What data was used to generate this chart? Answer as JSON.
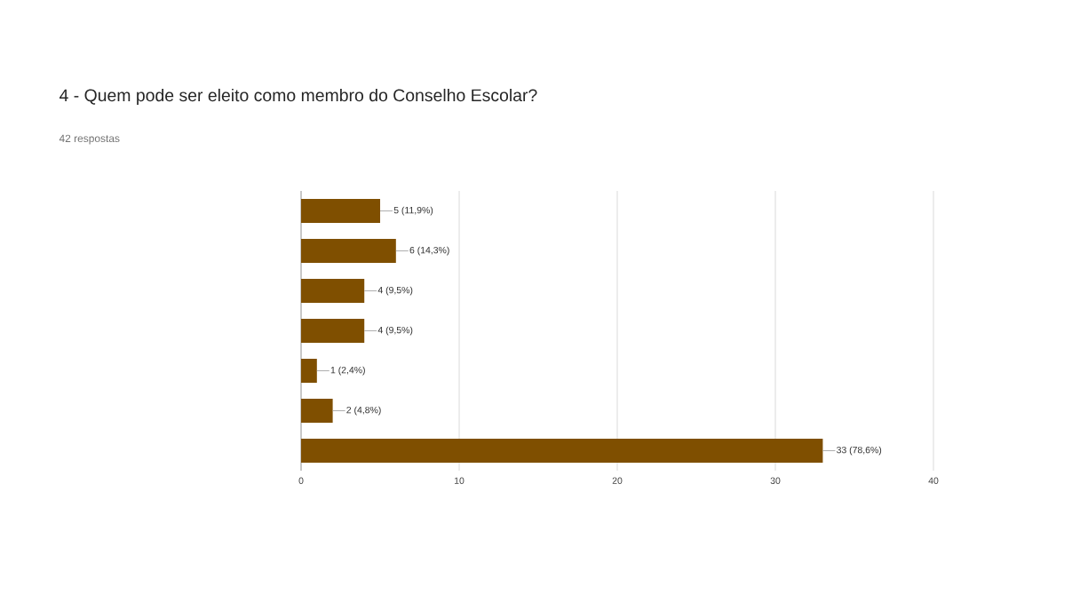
{
  "chart_data": {
    "type": "bar",
    "orientation": "horizontal",
    "title": "4 - Quem pode ser eleito como membro do Conselho Escolar?",
    "subtitle": "42 respostas",
    "categories": [
      null,
      null,
      null,
      null,
      null,
      null,
      null
    ],
    "values": [
      5,
      6,
      4,
      4,
      1,
      2,
      33
    ],
    "value_labels": [
      "5 (11,9%)",
      "6 (14,3%)",
      "4 (9,5%)",
      "4 (9,5%)",
      "1 (2,4%)",
      "2 (4,8%)",
      "33 (78,6%)"
    ],
    "color": "#7f4f00",
    "xlim": [
      0,
      40
    ],
    "xticks": [
      0,
      10,
      20,
      30,
      40
    ],
    "grid": "x"
  }
}
